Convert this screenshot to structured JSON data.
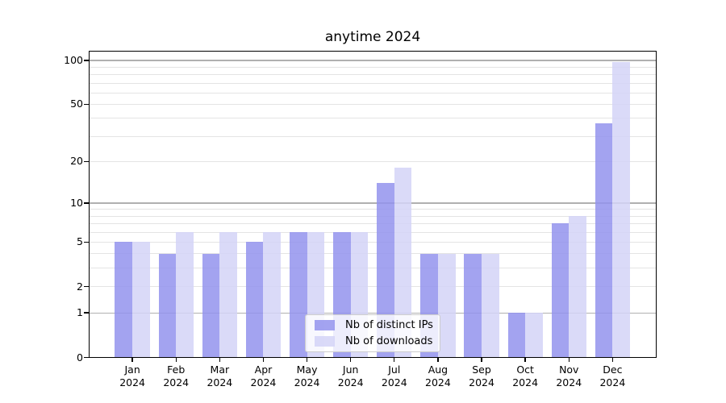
{
  "figure": {
    "title": "anytime 2024",
    "background": "#ffffff"
  },
  "chart_data": {
    "type": "bar",
    "title": "anytime 2024",
    "categories": [
      "Jan 2024",
      "Feb 2024",
      "Mar 2024",
      "Apr 2024",
      "May 2024",
      "Jun 2024",
      "Jul 2024",
      "Aug 2024",
      "Sep 2024",
      "Oct 2024",
      "Nov 2024",
      "Dec 2024"
    ],
    "series": [
      {
        "name": "Nb of distinct IPs",
        "color": "#a3a3f0",
        "fill": "rgba(147,147,237,0.85)",
        "values": [
          5,
          4,
          4,
          5,
          6,
          6,
          14,
          4,
          4,
          1,
          7,
          37
        ]
      },
      {
        "name": "Nb of downloads",
        "color": "#d9d9f8",
        "fill": "rgba(211,211,247,0.85)",
        "values": [
          5,
          6,
          6,
          6,
          6,
          6,
          18,
          4,
          4,
          1,
          8,
          97
        ]
      }
    ],
    "xlabel": "",
    "ylabel": "",
    "yscale": "log1p",
    "ylim": [
      0,
      117
    ],
    "yticks": [
      0,
      1,
      2,
      5,
      10,
      20,
      50,
      100
    ],
    "gridlines": {
      "major": [
        1,
        10,
        100
      ],
      "minor": [
        2,
        3,
        4,
        5,
        6,
        7,
        8,
        9,
        20,
        30,
        40,
        50,
        60,
        70,
        80,
        90
      ]
    },
    "grid_on": true,
    "legend_position": "lower-center"
  },
  "colors": {
    "major_grid": "#b0b0b0",
    "minor_grid": "#e4e4e4",
    "axis": "#000000",
    "bar_dark": "#a3a3f0",
    "bar_light": "#d9d9f8"
  }
}
